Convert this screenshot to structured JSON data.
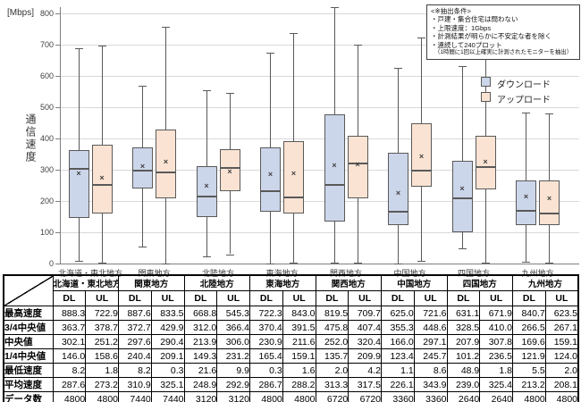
{
  "chart": {
    "unit_label": "[Mbps]",
    "y_axis_title": "通信速度",
    "legend": [
      {
        "label": "ダウンロード",
        "color": "#ccd6ea"
      },
      {
        "label": "アップロード",
        "color": "#fbe3d3"
      }
    ],
    "annotation": {
      "title": "<※抽出条件>",
      "lines": [
        "・戸建・集合住宅は問わない",
        "・上限速度：1Gbps",
        "・計測結果が明らかに不安定な者を除く",
        "・連続して240プロット"
      ],
      "footnote": "（1時間に1回以上確実に計測されたモニターを抽出）"
    }
  },
  "chart_data": {
    "type": "boxplot",
    "title": "",
    "ylabel": "通信速度 [Mbps]",
    "ylim": [
      0,
      800
    ],
    "y_ticks": [
      0,
      100,
      200,
      300,
      400,
      500,
      600,
      700,
      800
    ],
    "grid": true,
    "legend_position": "right",
    "categories": [
      "北海道・東北地方",
      "関東地方",
      "北陸地方",
      "東海地方",
      "関西地方",
      "中国地方",
      "四国地方",
      "九州地方"
    ],
    "series": [
      {
        "name": "ダウンロード",
        "abbr": "DL",
        "color": "#ccd6ea",
        "whisker_low": [
          8.2,
          55,
          21.6,
          0.3,
          2.0,
          1.1,
          48.9,
          5.5
        ],
        "q1": [
          146.0,
          240.4,
          149.3,
          165.4,
          135.7,
          123.4,
          101.2,
          121.9
        ],
        "median": [
          302.1,
          297.6,
          213.9,
          230.9,
          252.0,
          166.0,
          207.9,
          169.6
        ],
        "q3": [
          363.7,
          372.7,
          312.0,
          370.4,
          475.8,
          355.3,
          328.5,
          266.5
        ],
        "whisker_high": [
          688,
          570,
          553,
          674,
          819.5,
          625.0,
          631.1,
          483
        ],
        "mean": [
          287.6,
          310.9,
          248.9,
          286.7,
          313.3,
          226.1,
          239.0,
          213.2
        ],
        "data_min": [
          8.2,
          8.2,
          21.6,
          0.3,
          2.0,
          1.1,
          48.9,
          5.5
        ],
        "data_max": [
          888.3,
          887.6,
          668.8,
          722.3,
          819.5,
          625.0,
          631.1,
          840.7
        ]
      },
      {
        "name": "アップロード",
        "abbr": "UL",
        "color": "#fbe3d3",
        "whisker_low": [
          1.8,
          0.3,
          30,
          1.6,
          4.2,
          8.6,
          1.8,
          2.0
        ],
        "q1": [
          158.6,
          209.1,
          231.2,
          159.1,
          209.9,
          245.7,
          236.5,
          124.0
        ],
        "median": [
          251.2,
          290.4,
          306.0,
          211.6,
          320.4,
          297.1,
          307.8,
          159.1
        ],
        "q3": [
          378.7,
          429.9,
          366.4,
          391.5,
          407.4,
          448.6,
          410.0,
          267.1
        ],
        "whisker_high": [
          697,
          757,
          545.3,
          736,
          700,
          721.6,
          655,
          480
        ],
        "mean": [
          273.2,
          325.1,
          292.9,
          288.2,
          317.5,
          343.9,
          325.4,
          208.1
        ],
        "data_min": [
          1.8,
          0.3,
          9.9,
          1.6,
          4.2,
          8.6,
          1.8,
          2.0
        ],
        "data_max": [
          722.9,
          833.5,
          545.3,
          843.0,
          709.7,
          721.6,
          671.9,
          623.5
        ]
      }
    ]
  },
  "table": {
    "regions": [
      "北海道・東北地方",
      "関東地方",
      "北陸地方",
      "東海地方",
      "関西地方",
      "中国地方",
      "四国地方",
      "九州地方"
    ],
    "sub_headers": [
      "DL",
      "UL"
    ],
    "rows": [
      {
        "label": "最高速度",
        "values": [
          "888.3",
          "722.9",
          "887.6",
          "833.5",
          "668.8",
          "545.3",
          "722.3",
          "843.0",
          "819.5",
          "709.7",
          "625.0",
          "721.6",
          "631.1",
          "671.9",
          "840.7",
          "623.5"
        ]
      },
      {
        "label": "3/4中央値",
        "values": [
          "363.7",
          "378.7",
          "372.7",
          "429.9",
          "312.0",
          "366.4",
          "370.4",
          "391.5",
          "475.8",
          "407.4",
          "355.3",
          "448.6",
          "328.5",
          "410.0",
          "266.5",
          "267.1"
        ]
      },
      {
        "label": "中央値",
        "values": [
          "302.1",
          "251.2",
          "297.6",
          "290.4",
          "213.9",
          "306.0",
          "230.9",
          "211.6",
          "252.0",
          "320.4",
          "166.0",
          "297.1",
          "207.9",
          "307.8",
          "169.6",
          "159.1"
        ]
      },
      {
        "label": "1/4中央値",
        "values": [
          "146.0",
          "158.6",
          "240.4",
          "209.1",
          "149.3",
          "231.2",
          "165.4",
          "159.1",
          "135.7",
          "209.9",
          "123.4",
          "245.7",
          "101.2",
          "236.5",
          "121.9",
          "124.0"
        ]
      },
      {
        "label": "最低速度",
        "values": [
          "8.2",
          "1.8",
          "8.2",
          "0.3",
          "21.6",
          "9.9",
          "0.3",
          "1.6",
          "2.0",
          "4.2",
          "1.1",
          "8.6",
          "48.9",
          "1.8",
          "5.5",
          "2.0"
        ]
      },
      {
        "label": "平均速度",
        "values": [
          "287.6",
          "273.2",
          "310.9",
          "325.1",
          "248.9",
          "292.9",
          "286.7",
          "288.2",
          "313.3",
          "317.5",
          "226.1",
          "343.9",
          "239.0",
          "325.4",
          "213.2",
          "208.1"
        ]
      },
      {
        "label": "データ数",
        "values": [
          "4800",
          "4800",
          "7440",
          "7440",
          "3120",
          "3120",
          "4800",
          "4800",
          "6720",
          "6720",
          "3360",
          "3360",
          "2640",
          "2640",
          "4800",
          "4800"
        ]
      }
    ]
  }
}
